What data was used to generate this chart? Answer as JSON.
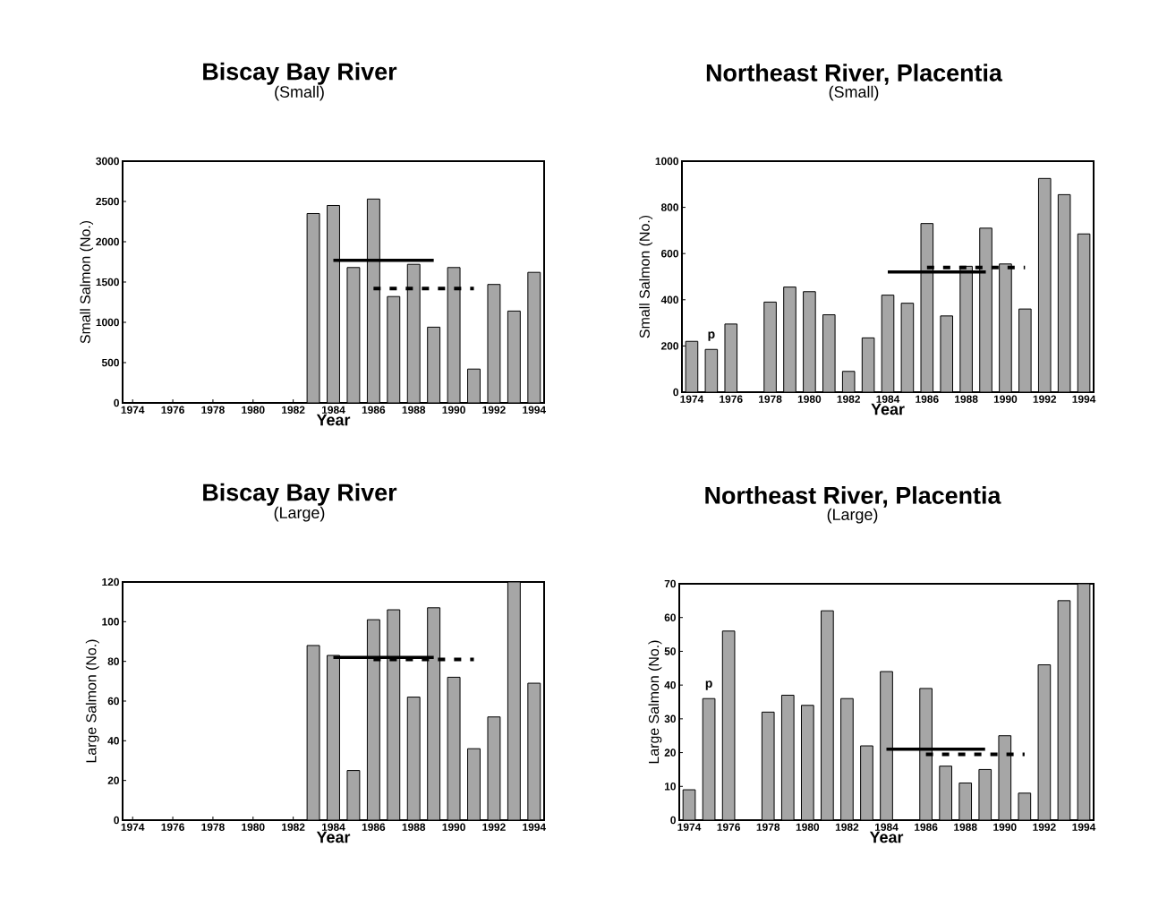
{
  "chart_data": [
    {
      "type": "bar",
      "title": "Biscay Bay River",
      "subtitle": "(Small)",
      "xlabel": "Year",
      "ylabel": "Small Salmon (No.)",
      "xlim": [
        1973.5,
        1994.5
      ],
      "xticks": [
        1974,
        1976,
        1978,
        1980,
        1982,
        1984,
        1986,
        1988,
        1990,
        1992,
        1994
      ],
      "ylim": [
        0,
        3000
      ],
      "yticks": [
        0,
        500,
        1000,
        1500,
        2000,
        2500,
        3000
      ],
      "series": [
        {
          "color": "#a6a6a6",
          "x": [
            1983,
            1984,
            1985,
            1986,
            1987,
            1988,
            1989,
            1990,
            1991,
            1992,
            1993,
            1994
          ],
          "values": [
            2350,
            2450,
            1680,
            2530,
            1320,
            1720,
            940,
            1680,
            420,
            1470,
            1140,
            1620
          ]
        },
        {
          "type": "line",
          "line_style": "solid",
          "color": "#000000",
          "x": [
            1984,
            1989
          ],
          "values": [
            1770,
            1770
          ]
        },
        {
          "type": "line",
          "line_style": "dashed",
          "color": "#000000",
          "x": [
            1986,
            1991
          ],
          "values": [
            1420,
            1420
          ]
        }
      ]
    },
    {
      "type": "bar",
      "title": "Northeast River, Placentia",
      "subtitle": "(Small)",
      "xlabel": "Year",
      "ylabel": "Small Salmon (No.)",
      "xlim": [
        1973.5,
        1994.5
      ],
      "xticks": [
        1974,
        1976,
        1978,
        1980,
        1982,
        1984,
        1986,
        1988,
        1990,
        1992,
        1994
      ],
      "ylim": [
        0,
        1000
      ],
      "yticks": [
        0,
        200,
        400,
        600,
        800,
        1000
      ],
      "annotations": [
        {
          "text": "p",
          "x": 1975,
          "y": 185
        }
      ],
      "series": [
        {
          "color": "#a6a6a6",
          "x": [
            1974,
            1975,
            1976,
            1977,
            1978,
            1979,
            1980,
            1981,
            1982,
            1983,
            1984,
            1985,
            1986,
            1987,
            1988,
            1989,
            1990,
            1991,
            1992,
            1993,
            1994
          ],
          "values": [
            220,
            185,
            295,
            null,
            390,
            455,
            435,
            335,
            90,
            235,
            420,
            385,
            730,
            330,
            545,
            710,
            555,
            360,
            925,
            855,
            685
          ]
        },
        {
          "type": "line",
          "line_style": "solid",
          "color": "#000000",
          "x": [
            1984,
            1989
          ],
          "values": [
            520,
            520
          ]
        },
        {
          "type": "line",
          "line_style": "dashed",
          "color": "#000000",
          "x": [
            1986,
            1991
          ],
          "values": [
            540,
            540
          ]
        }
      ]
    },
    {
      "type": "bar",
      "title": "Biscay Bay River",
      "subtitle": "(Large)",
      "xlabel": "Year",
      "ylabel": "Large Salmon (No.)",
      "xlim": [
        1973.5,
        1994.5
      ],
      "xticks": [
        1974,
        1976,
        1978,
        1980,
        1982,
        1984,
        1986,
        1988,
        1990,
        1992,
        1994
      ],
      "ylim": [
        0,
        120
      ],
      "yticks": [
        0,
        20,
        40,
        60,
        80,
        100,
        120
      ],
      "series": [
        {
          "color": "#a6a6a6",
          "x": [
            1983,
            1984,
            1985,
            1986,
            1987,
            1988,
            1989,
            1990,
            1991,
            1992,
            1993,
            1994
          ],
          "values": [
            88,
            83,
            25,
            101,
            106,
            62,
            107,
            72,
            36,
            52,
            120,
            69
          ]
        },
        {
          "type": "line",
          "line_style": "solid",
          "color": "#000000",
          "x": [
            1984,
            1989
          ],
          "values": [
            82,
            82
          ]
        },
        {
          "type": "line",
          "line_style": "dashed",
          "color": "#000000",
          "x": [
            1986,
            1991
          ],
          "values": [
            81,
            81
          ]
        }
      ]
    },
    {
      "type": "bar",
      "title": "Northeast River, Placentia",
      "subtitle": "(Large)",
      "xlabel": "Year",
      "ylabel": "Large Salmon (No.)",
      "xlim": [
        1973.5,
        1994.5
      ],
      "xticks": [
        1974,
        1976,
        1978,
        1980,
        1982,
        1984,
        1986,
        1988,
        1990,
        1992,
        1994
      ],
      "ylim": [
        0,
        70
      ],
      "yticks": [
        0,
        10,
        20,
        30,
        40,
        50,
        60,
        70
      ],
      "annotations": [
        {
          "text": "p",
          "x": 1975,
          "y": 36
        }
      ],
      "series": [
        {
          "color": "#a6a6a6",
          "x": [
            1974,
            1975,
            1976,
            1977,
            1978,
            1979,
            1980,
            1981,
            1982,
            1983,
            1984,
            1985,
            1986,
            1987,
            1988,
            1989,
            1990,
            1991,
            1992,
            1993,
            1994
          ],
          "values": [
            9,
            36,
            56,
            null,
            32,
            37,
            34,
            62,
            36,
            22,
            44,
            null,
            39,
            16,
            11,
            15,
            25,
            8,
            46,
            65,
            70
          ]
        },
        {
          "type": "line",
          "line_style": "solid",
          "color": "#000000",
          "x": [
            1984,
            1989
          ],
          "values": [
            21,
            21
          ]
        },
        {
          "type": "line",
          "line_style": "dashed",
          "color": "#000000",
          "x": [
            1986,
            1991
          ],
          "values": [
            19.5,
            19.5
          ]
        }
      ]
    }
  ]
}
